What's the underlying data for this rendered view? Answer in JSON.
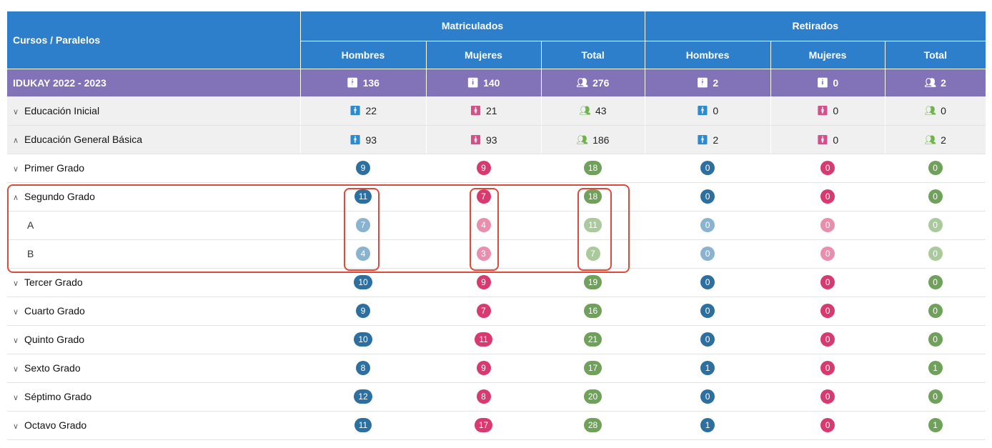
{
  "header": {
    "course_col": "Cursos / Paralelos",
    "group_matriculados": "Matriculados",
    "group_retirados": "Retirados",
    "sub": [
      "Hombres",
      "Mujeres",
      "Total",
      "Hombres",
      "Mujeres",
      "Total"
    ]
  },
  "year_row": {
    "label": "IDUKAY 2022 - 2023",
    "values": [
      "136",
      "140",
      "276",
      "2",
      "0",
      "2"
    ]
  },
  "levels": [
    {
      "label": "Educación Inicial",
      "expanded": false,
      "values": [
        "22",
        "21",
        "43",
        "0",
        "0",
        "0"
      ]
    },
    {
      "label": "Educación General Básica",
      "expanded": true,
      "values": [
        "93",
        "93",
        "186",
        "2",
        "0",
        "2"
      ]
    }
  ],
  "grades": [
    {
      "label": "Primer Grado",
      "values": [
        "9",
        "9",
        "18",
        "0",
        "0",
        "0"
      ]
    },
    {
      "label": "Segundo Grado",
      "values": [
        "11",
        "7",
        "18",
        "0",
        "0",
        "0"
      ],
      "sections": [
        {
          "label": "A",
          "values": [
            "7",
            "4",
            "11",
            "0",
            "0",
            "0"
          ]
        },
        {
          "label": "B",
          "values": [
            "4",
            "3",
            "7",
            "0",
            "0",
            "0"
          ]
        }
      ]
    },
    {
      "label": "Tercer Grado",
      "values": [
        "10",
        "9",
        "19",
        "0",
        "0",
        "0"
      ]
    },
    {
      "label": "Cuarto Grado",
      "values": [
        "9",
        "7",
        "16",
        "0",
        "0",
        "0"
      ]
    },
    {
      "label": "Quinto Grado",
      "values": [
        "10",
        "11",
        "21",
        "0",
        "0",
        "0"
      ]
    },
    {
      "label": "Sexto Grado",
      "values": [
        "8",
        "9",
        "17",
        "1",
        "0",
        "1"
      ]
    },
    {
      "label": "Séptimo Grado",
      "values": [
        "12",
        "8",
        "20",
        "0",
        "0",
        "0"
      ]
    },
    {
      "label": "Octavo Grado",
      "values": [
        "11",
        "17",
        "28",
        "1",
        "0",
        "1"
      ]
    }
  ],
  "icons": {
    "male": "male-icon",
    "female": "female-icon",
    "group": "group-icon",
    "collapsed": "chevron-down-icon",
    "expanded": "chevron-up-icon"
  },
  "colors": {
    "header_blue": "#2e7fcb",
    "year_purple": "#8272b7",
    "badge_blue": "#2d6f9f",
    "badge_pink": "#d8396f",
    "badge_green": "#6fa15a",
    "highlight_red": "#dd4a3b"
  }
}
